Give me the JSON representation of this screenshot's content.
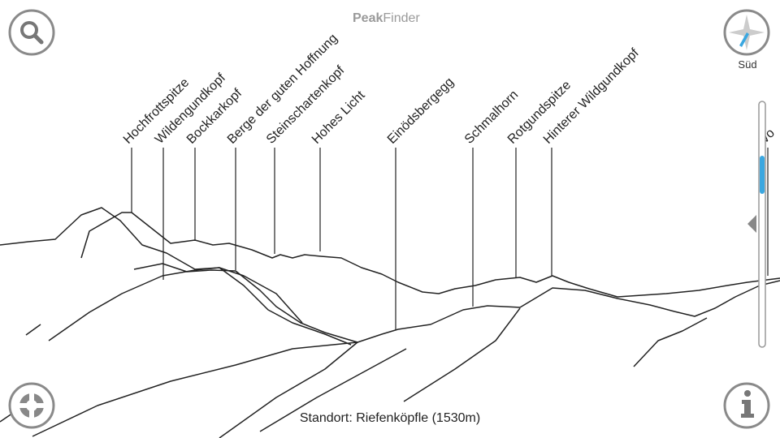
{
  "header": {
    "title_bold": "Peak",
    "title_regular": "Finder"
  },
  "compass": {
    "direction": "Süd"
  },
  "peaks": [
    "Hochfrottspitze",
    "Wildengundkopf",
    "Bockkarkopf",
    "Berge der guten Hoffnung",
    "Steinschartenkopf",
    "Hohes Licht",
    "Einödsbergegg",
    "Schmalhorn",
    "Rotgundspitze",
    "Hinterer Wildgundkopf",
    "Vo"
  ],
  "footer": {
    "location": "Standort: Riefenköpfle (1530m)"
  }
}
